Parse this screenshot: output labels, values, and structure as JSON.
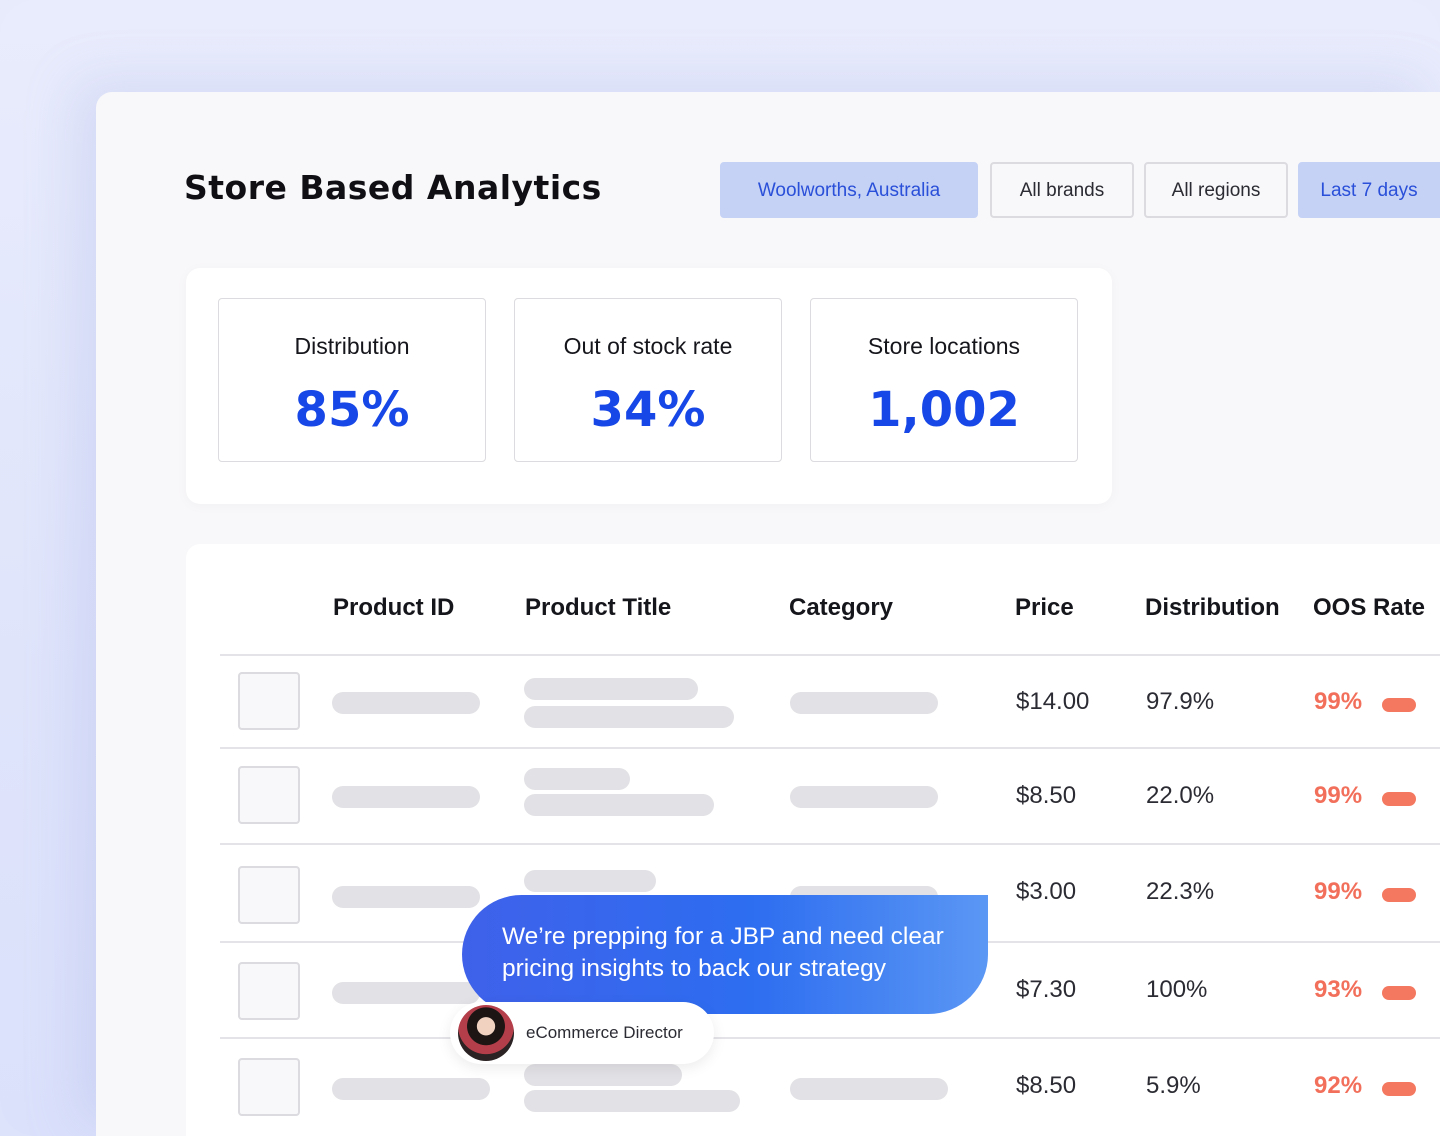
{
  "page_title": "Store Based Analytics",
  "filters": [
    {
      "label": "Woolworths, Australia",
      "active": true
    },
    {
      "label": "All brands",
      "active": false
    },
    {
      "label": "All regions",
      "active": false
    },
    {
      "label": "Last 7 days",
      "active": true
    }
  ],
  "kpis": [
    {
      "label": "Distribution",
      "value": "85%"
    },
    {
      "label": "Out of stock rate",
      "value": "34%"
    },
    {
      "label": "Store locations",
      "value": "1,002"
    }
  ],
  "table": {
    "headers": [
      "Product ID",
      "Product Title",
      "Category",
      "Price",
      "Distribution",
      "OOS Rate"
    ],
    "rows": [
      {
        "price": "$14.00",
        "distribution": "97.9%",
        "oos": "99%"
      },
      {
        "price": "$8.50",
        "distribution": "22.0%",
        "oos": "99%"
      },
      {
        "price": "$3.00",
        "distribution": "22.3%",
        "oos": "99%"
      },
      {
        "price": "$7.30",
        "distribution": "100%",
        "oos": "93%"
      },
      {
        "price": "$8.50",
        "distribution": "5.9%",
        "oos": "92%"
      }
    ]
  },
  "chat": {
    "message": "We’re prepping for a JBP and need clear pricing insights to back our strategy",
    "persona": "eCommerce Director"
  },
  "colors": {
    "accent": "#1747e6",
    "filter_active_bg": "#c5d2f6",
    "oos": "#f2705b"
  }
}
